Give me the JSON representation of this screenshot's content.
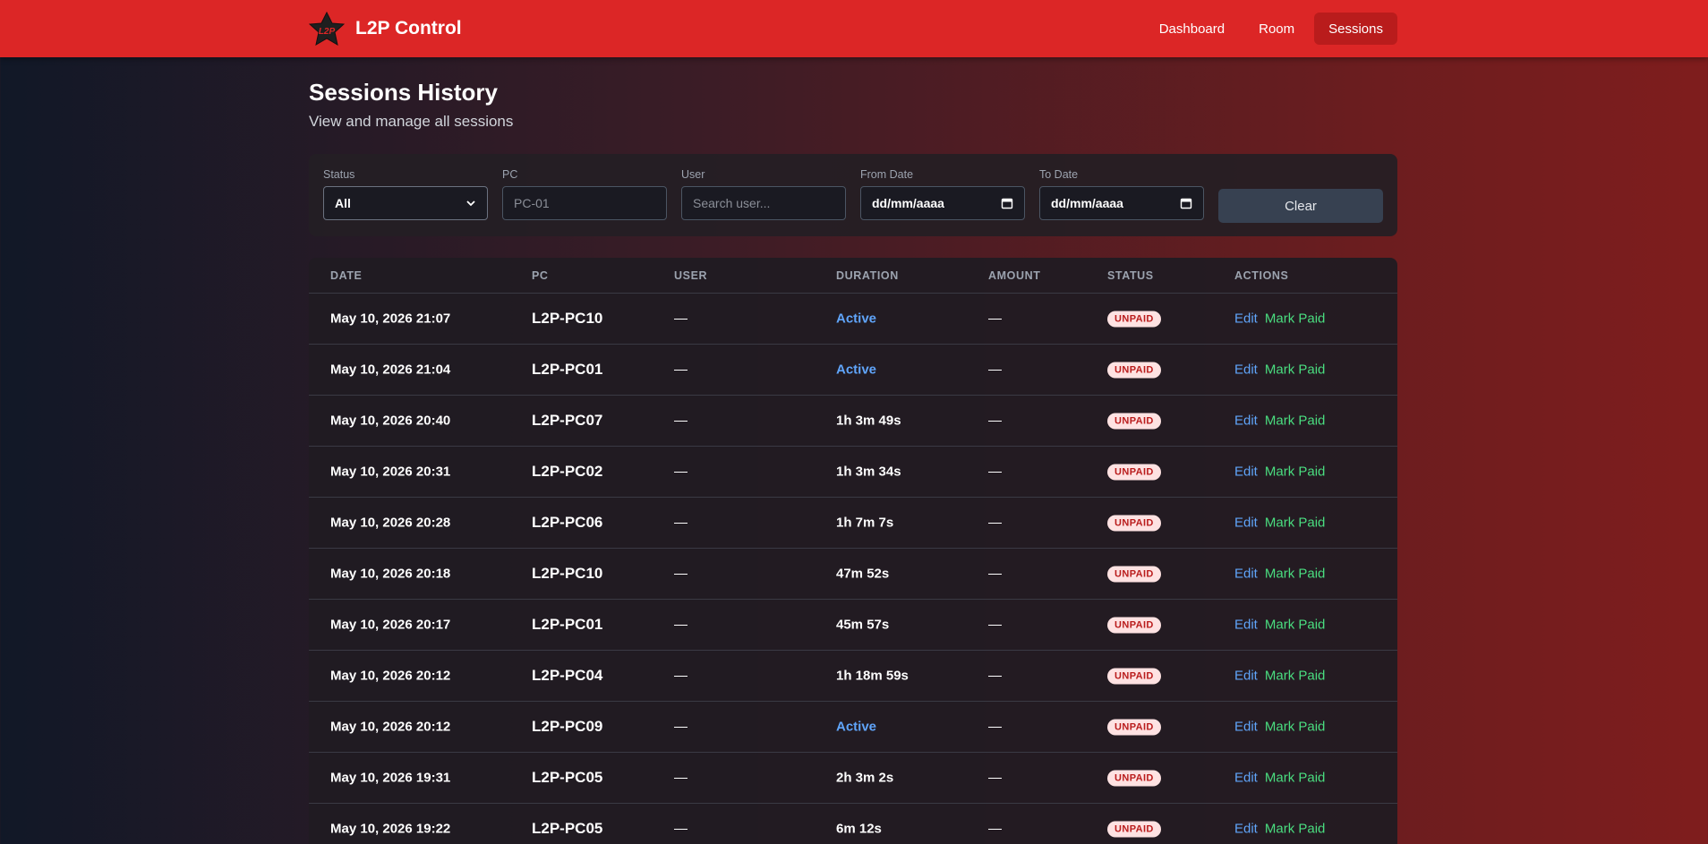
{
  "header": {
    "app_name": "L2P Control",
    "logo_text": "L2P",
    "nav": [
      {
        "label": "Dashboard",
        "active": false
      },
      {
        "label": "Room",
        "active": false
      },
      {
        "label": "Sessions",
        "active": true
      }
    ],
    "brand_color": "#dc2626"
  },
  "page": {
    "title": "Sessions History",
    "subtitle": "View and manage all sessions"
  },
  "filters": {
    "status": {
      "label": "Status",
      "value": "All"
    },
    "pc": {
      "label": "PC",
      "placeholder": "PC-01"
    },
    "user": {
      "label": "User",
      "placeholder": "Search user..."
    },
    "from_date": {
      "label": "From Date",
      "value": "dd/mm/aaaa"
    },
    "to_date": {
      "label": "To Date",
      "value": "dd/mm/aaaa"
    },
    "clear_label": "Clear"
  },
  "table": {
    "columns": [
      "DATE",
      "PC",
      "USER",
      "DURATION",
      "AMOUNT",
      "STATUS",
      "ACTIONS"
    ],
    "edit_label": "Edit",
    "mark_paid_label": "Mark Paid",
    "rows": [
      {
        "date": "May 10, 2026 21:07",
        "pc": "L2P-PC10",
        "user": "—",
        "duration": "Active",
        "amount": "—",
        "status": "UNPAID"
      },
      {
        "date": "May 10, 2026 21:04",
        "pc": "L2P-PC01",
        "user": "—",
        "duration": "Active",
        "amount": "—",
        "status": "UNPAID"
      },
      {
        "date": "May 10, 2026 20:40",
        "pc": "L2P-PC07",
        "user": "—",
        "duration": "1h 3m 49s",
        "amount": "—",
        "status": "UNPAID"
      },
      {
        "date": "May 10, 2026 20:31",
        "pc": "L2P-PC02",
        "user": "—",
        "duration": "1h 3m 34s",
        "amount": "—",
        "status": "UNPAID"
      },
      {
        "date": "May 10, 2026 20:28",
        "pc": "L2P-PC06",
        "user": "—",
        "duration": "1h 7m 7s",
        "amount": "—",
        "status": "UNPAID"
      },
      {
        "date": "May 10, 2026 20:18",
        "pc": "L2P-PC10",
        "user": "—",
        "duration": "47m 52s",
        "amount": "—",
        "status": "UNPAID"
      },
      {
        "date": "May 10, 2026 20:17",
        "pc": "L2P-PC01",
        "user": "—",
        "duration": "45m 57s",
        "amount": "—",
        "status": "UNPAID"
      },
      {
        "date": "May 10, 2026 20:12",
        "pc": "L2P-PC04",
        "user": "—",
        "duration": "1h 18m 59s",
        "amount": "—",
        "status": "UNPAID"
      },
      {
        "date": "May 10, 2026 20:12",
        "pc": "L2P-PC09",
        "user": "—",
        "duration": "Active",
        "amount": "—",
        "status": "UNPAID"
      },
      {
        "date": "May 10, 2026 19:31",
        "pc": "L2P-PC05",
        "user": "—",
        "duration": "2h 3m 2s",
        "amount": "—",
        "status": "UNPAID"
      },
      {
        "date": "May 10, 2026 19:22",
        "pc": "L2P-PC05",
        "user": "—",
        "duration": "6m 12s",
        "amount": "—",
        "status": "UNPAID"
      }
    ]
  }
}
